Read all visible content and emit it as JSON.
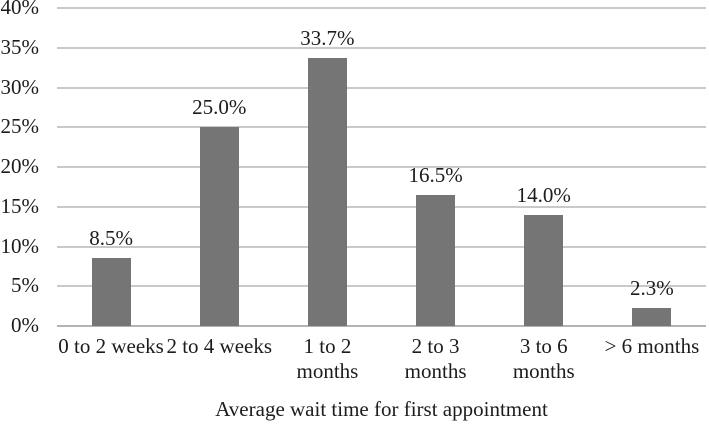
{
  "chart_data": {
    "type": "bar",
    "title": "",
    "xlabel": "Average wait time for first appointment",
    "ylabel": "",
    "categories": [
      "0 to 2 weeks",
      "2 to 4 weeks",
      "1 to 2\nmonths",
      "2 to 3\nmonths",
      "3 to 6\nmonths",
      "> 6 months"
    ],
    "values": [
      8.5,
      25.0,
      33.7,
      16.5,
      14.0,
      2.3
    ],
    "data_labels": [
      "8.5%",
      "25.0%",
      "33.7%",
      "16.5%",
      "14.0%",
      "2.3%"
    ],
    "ylim": [
      0,
      40
    ],
    "yticks": [
      {
        "value": 0,
        "label": "0%"
      },
      {
        "value": 5,
        "label": "5%"
      },
      {
        "value": 10,
        "label": "10%"
      },
      {
        "value": 15,
        "label": "15%"
      },
      {
        "value": 20,
        "label": "20%"
      },
      {
        "value": 25,
        "label": "25%"
      },
      {
        "value": 30,
        "label": "30%"
      },
      {
        "value": 35,
        "label": "35%"
      },
      {
        "value": 40,
        "label": "40%"
      }
    ],
    "grid": true,
    "legend": "none",
    "colors": {
      "bar": "#757575",
      "gridline": "#c9c9c9",
      "baseline": "#b3b3b3",
      "text": "#1c1c1c",
      "background": "#ffffff"
    }
  }
}
